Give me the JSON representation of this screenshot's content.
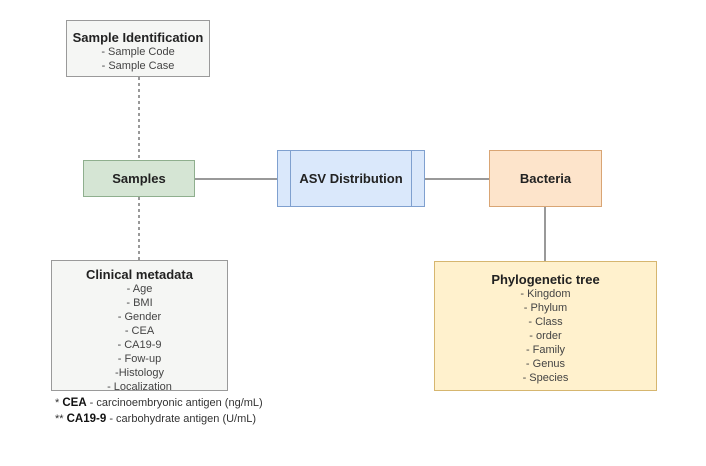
{
  "sample_identification": {
    "title": "Sample Identification",
    "items": [
      "- Sample Code",
      "- Sample Case"
    ]
  },
  "samples": {
    "title": "Samples"
  },
  "asv_distribution": {
    "title": "ASV Distribution"
  },
  "bacteria": {
    "title": "Bacteria"
  },
  "clinical_metadata": {
    "title": "Clinical metadata",
    "items": [
      "- Age",
      "- BMI",
      "- Gender",
      "- CEA",
      "- CA19-9",
      "- Fow-up",
      "-Histology",
      "- Localization"
    ]
  },
  "phylogenetic_tree": {
    "title": "Phylogenetic tree",
    "items": [
      "- Kingdom",
      "- Phylum",
      "- Class",
      "- order",
      "- Family",
      "- Genus",
      "- Species"
    ]
  },
  "footnotes": {
    "cea_marker": "* ",
    "cea_term": "CEA",
    "cea_desc": " - carcinoembryonic antigen (ng/mL)",
    "ca199_marker": "** ",
    "ca199_term": "CA19-9",
    "ca199_desc": " - carbohydrate antigen (U/mL)"
  },
  "colors": {
    "samples_fill": "#d5e5d4",
    "asv_fill": "#dae8fb",
    "bacteria_fill": "#fde4cb",
    "phylo_fill": "#fff1cd",
    "meta_fill": "#f5f6f4"
  }
}
